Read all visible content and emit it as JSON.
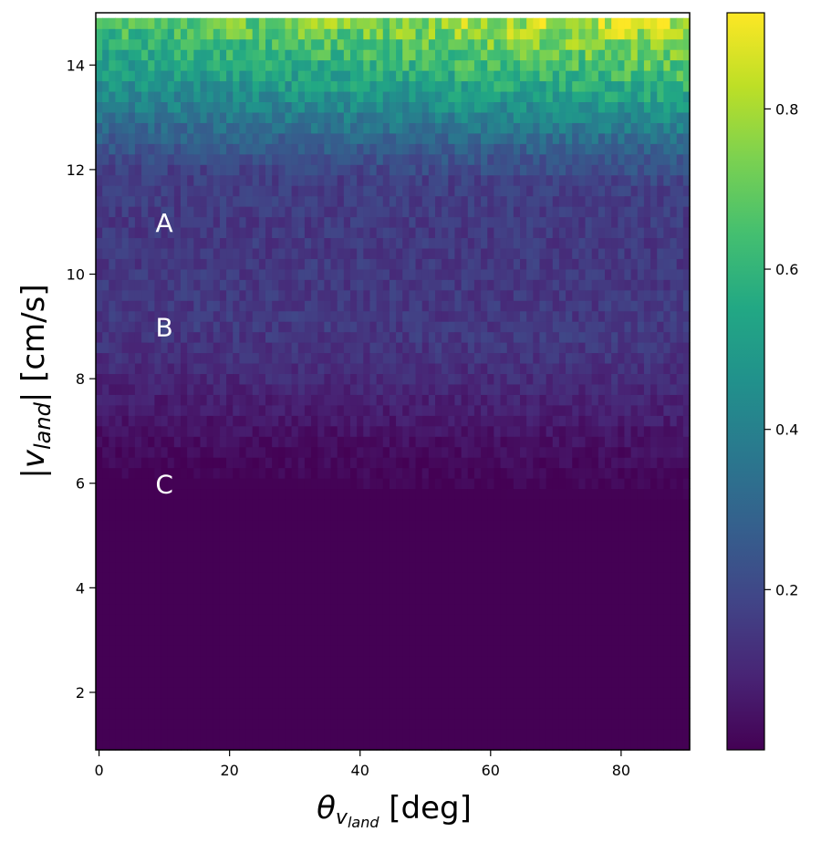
{
  "chart_data": {
    "type": "heatmap",
    "title": "",
    "xlabel": {
      "main": "θ",
      "sub": "v",
      "subsub": "land",
      "unit": " [deg]"
    },
    "ylabel": {
      "pre": "|",
      "main": "v",
      "sub": "land",
      "post": "| [cm/s]"
    },
    "xlim": [
      -0.5,
      90.5
    ],
    "ylim": [
      0.9,
      15.0
    ],
    "x_ticks": [
      0,
      20,
      40,
      60,
      80
    ],
    "y_ticks": [
      2,
      4,
      6,
      8,
      10,
      12,
      14
    ],
    "colorbar": {
      "colormap": "viridis",
      "range": [
        0.0,
        0.92
      ],
      "ticks": [
        0.2,
        0.4,
        0.6,
        0.8
      ]
    },
    "grid": {
      "x_bins": 91,
      "y_bins": 70,
      "x_start": -0.5,
      "x_step": 1.0,
      "y_start": 0.9,
      "y_step": 0.2
    },
    "value_profile": {
      "description_rows": "approximate mean value by speed (cm/s); values vary with noise and increase toward higher angle at top",
      "speed": [
        0.9,
        6.0,
        6.6,
        7.2,
        8.0,
        9.0,
        10.0,
        11.0,
        12.0,
        12.6,
        13.2,
        13.8,
        14.4,
        15.0
      ],
      "value": [
        0.0,
        0.0,
        0.02,
        0.05,
        0.1,
        0.15,
        0.15,
        0.15,
        0.17,
        0.27,
        0.38,
        0.48,
        0.58,
        0.68
      ]
    },
    "annotations": [
      {
        "text": "A",
        "x": 10,
        "y": 10.95
      },
      {
        "text": "B",
        "x": 10,
        "y": 8.95
      },
      {
        "text": "C",
        "x": 10,
        "y": 5.95
      }
    ]
  }
}
